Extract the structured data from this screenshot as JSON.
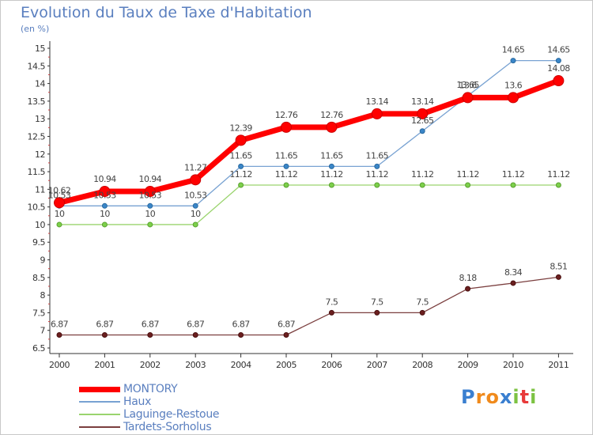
{
  "chart_data": {
    "type": "line",
    "title": "Evolution du Taux de Taxe d'Habitation",
    "subtitle": "(en %)",
    "x": [
      "2000",
      "2001",
      "2002",
      "2003",
      "2004",
      "2005",
      "2006",
      "2007",
      "2008",
      "2009",
      "2010",
      "2011"
    ],
    "ylim": [
      6.5,
      15
    ],
    "yticks": [
      "6.5",
      "7",
      "7.5",
      "8",
      "8.5",
      "9",
      "9.5",
      "10",
      "10.5",
      "11",
      "11.5",
      "12",
      "12.5",
      "13",
      "13.5",
      "14",
      "14.5",
      "15"
    ],
    "grid": false,
    "legend_position": "bottom-left",
    "series": [
      {
        "name": "MONTORY",
        "color": "#ff0000",
        "values": [
          10.62,
          10.94,
          10.94,
          11.27,
          12.39,
          12.76,
          12.76,
          13.14,
          13.14,
          13.6,
          13.6,
          14.08
        ],
        "labels": [
          "10.62",
          "10.94",
          "10.94",
          "11.27",
          "12.39",
          "12.76",
          "12.76",
          "13.14",
          "13.14",
          "13.6",
          "13.6",
          "14.08"
        ]
      },
      {
        "name": "Haux",
        "color": "#78a2d2",
        "values": [
          10.53,
          10.53,
          10.53,
          10.53,
          11.65,
          11.65,
          11.65,
          11.65,
          12.65,
          13.65,
          14.65,
          14.65
        ],
        "labels": [
          "10.53",
          "10.53",
          "10.53",
          "10.53",
          "11.65",
          "11.65",
          "11.65",
          "11.65",
          "12.65",
          "13.65",
          "14.65",
          "14.65"
        ]
      },
      {
        "name": "Laguinge-Restoue",
        "color": "#9ad46e",
        "values": [
          10,
          10,
          10,
          10,
          11.12,
          11.12,
          11.12,
          11.12,
          11.12,
          11.12,
          11.12,
          11.12
        ],
        "labels": [
          "10",
          "10",
          "10",
          "10",
          "11.12",
          "11.12",
          "11.12",
          "11.12",
          "11.12",
          "11.12",
          "11.12",
          "11.12"
        ]
      },
      {
        "name": "Tardets-Sorholus",
        "color": "#7b3f3f",
        "values": [
          6.87,
          6.87,
          6.87,
          6.87,
          6.87,
          6.87,
          7.5,
          7.5,
          7.5,
          8.18,
          8.34,
          8.51
        ],
        "labels": [
          "6.87",
          "6.87",
          "6.87",
          "6.87",
          "6.87",
          "6.87",
          "7.5",
          "7.5",
          "7.5",
          "8.18",
          "8.34",
          "8.51"
        ]
      }
    ]
  },
  "logo": {
    "letters": [
      "P",
      "r",
      "o",
      "x",
      "i",
      "t",
      "i"
    ],
    "colors": [
      "#3a7fd0",
      "#f08a1c",
      "#f08a1c",
      "#3a7fd0",
      "#7cc242",
      "#e83a3a",
      "#7cc242"
    ]
  }
}
